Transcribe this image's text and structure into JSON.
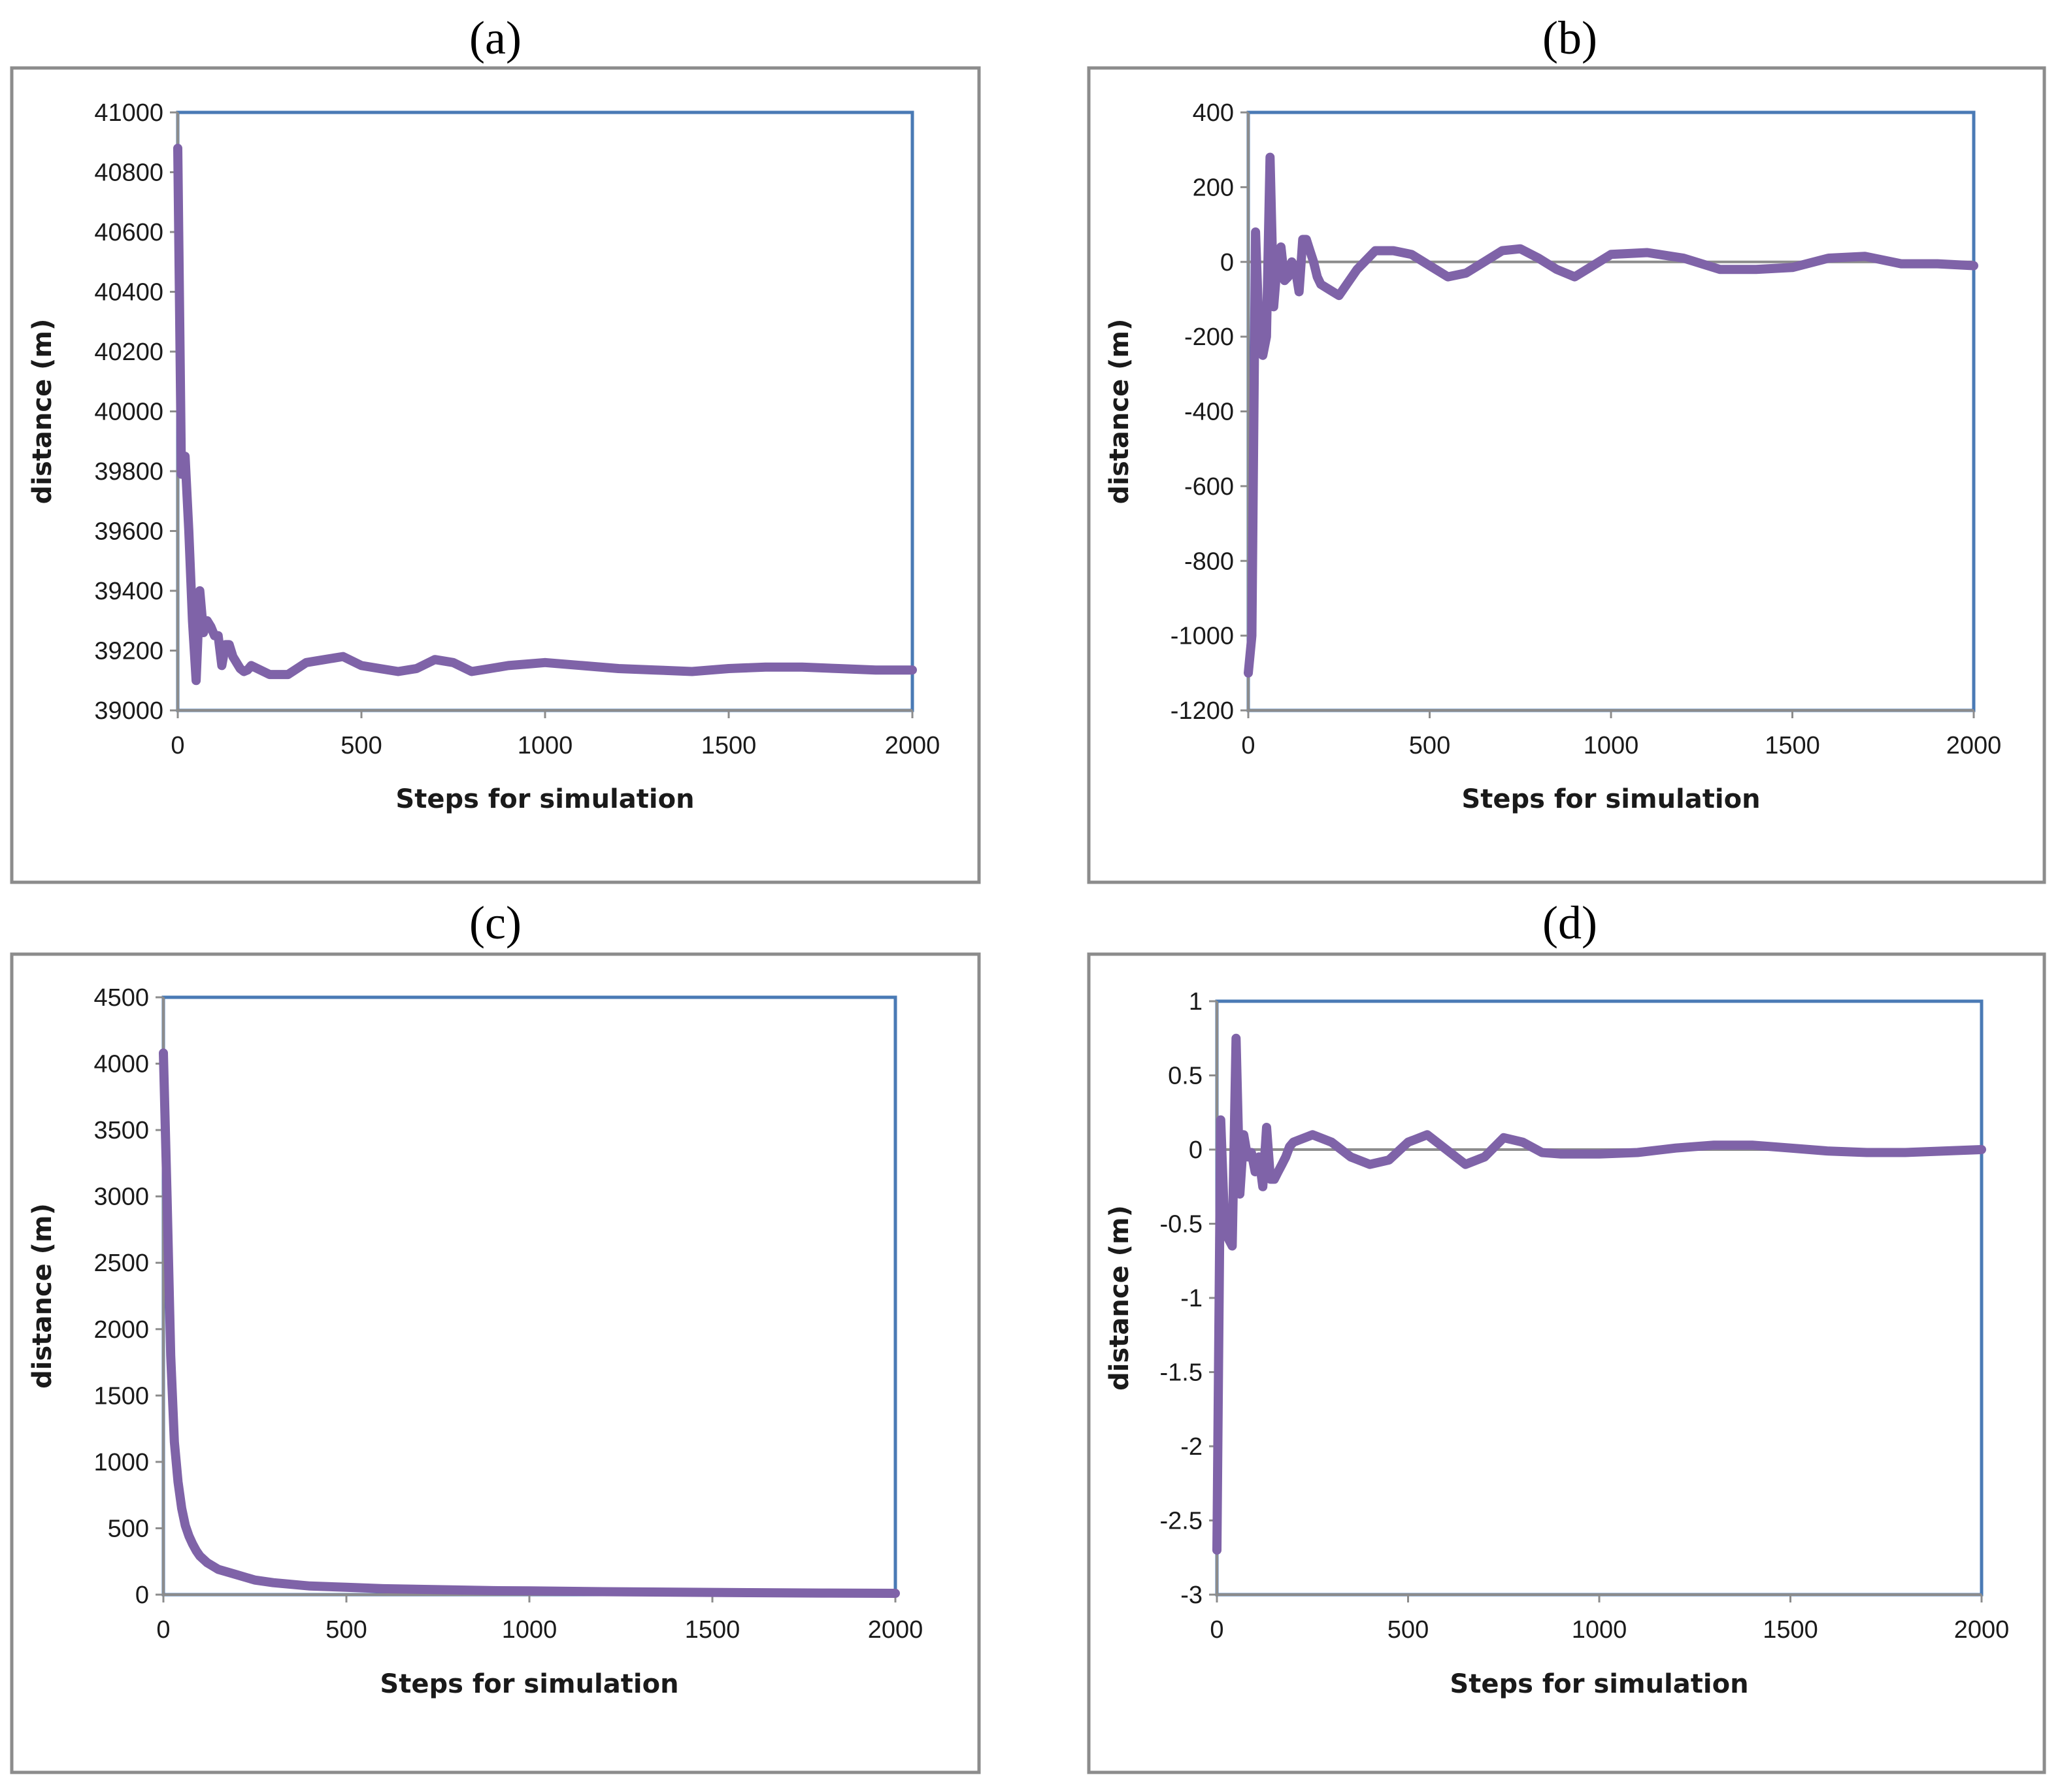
{
  "figure": {
    "panel_count": 4
  },
  "colors": {
    "series": "#7f63a8",
    "plot_border": "#4a7ab5",
    "outer_border": "#8c8c8c",
    "zero_line": "#8c8c8c",
    "text": "#1a1a1a"
  },
  "chart_data": [
    {
      "panel": "a",
      "label": "(a)",
      "type": "line",
      "title": "",
      "xlabel": "Steps for simulation",
      "ylabel": "distance  (m)",
      "xlim": [
        0,
        2000
      ],
      "ylim": [
        39000,
        41000
      ],
      "xticks": [
        0,
        500,
        1000,
        1500,
        2000
      ],
      "yticks": [
        39000,
        39200,
        39400,
        39600,
        39800,
        40000,
        40200,
        40400,
        40600,
        40800,
        41000
      ],
      "zero_line": false,
      "series": [
        {
          "name": "distance",
          "x": [
            0,
            10,
            20,
            30,
            40,
            50,
            60,
            70,
            80,
            90,
            100,
            110,
            120,
            130,
            140,
            150,
            160,
            170,
            180,
            190,
            200,
            250,
            300,
            350,
            400,
            450,
            500,
            550,
            600,
            650,
            700,
            750,
            800,
            850,
            900,
            950,
            1000,
            1100,
            1200,
            1300,
            1400,
            1500,
            1600,
            1700,
            1800,
            1900,
            2000
          ],
          "y": [
            40880,
            39790,
            39850,
            39600,
            39300,
            39100,
            39400,
            39260,
            39300,
            39280,
            39250,
            39250,
            39150,
            39220,
            39220,
            39180,
            39160,
            39140,
            39130,
            39135,
            39150,
            39120,
            39120,
            39160,
            39170,
            39180,
            39150,
            39140,
            39130,
            39140,
            39170,
            39160,
            39130,
            39140,
            39150,
            39155,
            39160,
            39150,
            39140,
            39135,
            39130,
            39140,
            39145,
            39145,
            39140,
            39135,
            39135
          ]
        }
      ]
    },
    {
      "panel": "b",
      "label": "(b)",
      "type": "line",
      "title": "",
      "xlabel": "Steps for simulation",
      "ylabel": "distance  (m)",
      "xlim": [
        0,
        2000
      ],
      "ylim": [
        -1200,
        400
      ],
      "xticks": [
        0,
        500,
        1000,
        1500,
        2000
      ],
      "yticks": [
        -1200,
        -1000,
        -800,
        -600,
        -400,
        -200,
        0,
        200,
        400
      ],
      "zero_line": true,
      "series": [
        {
          "name": "distance",
          "x": [
            0,
            10,
            20,
            30,
            40,
            50,
            60,
            70,
            80,
            90,
            100,
            110,
            120,
            130,
            140,
            150,
            160,
            170,
            180,
            190,
            200,
            250,
            300,
            350,
            400,
            450,
            500,
            550,
            600,
            650,
            700,
            750,
            800,
            850,
            900,
            950,
            1000,
            1100,
            1200,
            1300,
            1400,
            1500,
            1600,
            1700,
            1800,
            1900,
            2000
          ],
          "y": [
            -1100,
            -1000,
            80,
            -200,
            -250,
            -200,
            280,
            -120,
            0,
            40,
            -50,
            -40,
            0,
            -20,
            -80,
            60,
            60,
            30,
            0,
            -40,
            -60,
            -90,
            -20,
            30,
            30,
            20,
            -10,
            -40,
            -30,
            0,
            30,
            35,
            10,
            -20,
            -40,
            -10,
            20,
            25,
            10,
            -20,
            -20,
            -15,
            10,
            15,
            -5,
            -5,
            -10
          ]
        }
      ]
    },
    {
      "panel": "c",
      "label": "(c)",
      "type": "line",
      "title": "",
      "xlabel": "Steps for simulation",
      "ylabel": "distance  (m)",
      "xlim": [
        0,
        2000
      ],
      "ylim": [
        0,
        4500
      ],
      "xticks": [
        0,
        500,
        1000,
        1500,
        2000
      ],
      "yticks": [
        0,
        500,
        1000,
        1500,
        2000,
        2500,
        3000,
        3500,
        4000,
        4500
      ],
      "zero_line": false,
      "series": [
        {
          "name": "distance",
          "x": [
            0,
            10,
            20,
            30,
            40,
            50,
            60,
            70,
            80,
            90,
            100,
            120,
            150,
            200,
            250,
            300,
            400,
            500,
            600,
            700,
            800,
            900,
            1000,
            1200,
            1400,
            1600,
            1800,
            2000
          ],
          "y": [
            4080,
            3000,
            1800,
            1150,
            850,
            650,
            520,
            440,
            380,
            330,
            290,
            240,
            190,
            150,
            110,
            90,
            65,
            55,
            45,
            40,
            35,
            30,
            28,
            22,
            18,
            15,
            12,
            10
          ]
        }
      ]
    },
    {
      "panel": "d",
      "label": "(d)",
      "type": "line",
      "title": "",
      "xlabel": "Steps for simulation",
      "ylabel": "distance  (m)",
      "xlim": [
        0,
        2000
      ],
      "ylim": [
        -3,
        1
      ],
      "xticks": [
        0,
        500,
        1000,
        1500,
        2000
      ],
      "yticks": [
        -3,
        -2.5,
        -2,
        -1.5,
        -1,
        -0.5,
        0,
        0.5,
        1
      ],
      "zero_line": true,
      "series": [
        {
          "name": "distance",
          "x": [
            0,
            10,
            20,
            30,
            40,
            50,
            60,
            70,
            80,
            90,
            100,
            110,
            120,
            130,
            140,
            150,
            160,
            170,
            180,
            190,
            200,
            250,
            300,
            350,
            400,
            450,
            500,
            550,
            600,
            650,
            700,
            750,
            800,
            850,
            900,
            950,
            1000,
            1100,
            1200,
            1300,
            1400,
            1500,
            1600,
            1700,
            1800,
            1900,
            2000
          ],
          "y": [
            -2.7,
            0.2,
            -0.5,
            -0.6,
            -0.65,
            0.75,
            -0.3,
            0.1,
            -0.05,
            -0.02,
            -0.15,
            -0.05,
            -0.25,
            0.15,
            -0.2,
            -0.2,
            -0.15,
            -0.1,
            -0.05,
            0.02,
            0.05,
            0.1,
            0.05,
            -0.05,
            -0.1,
            -0.07,
            0.05,
            0.1,
            0.0,
            -0.1,
            -0.05,
            0.08,
            0.05,
            -0.02,
            -0.03,
            -0.03,
            -0.03,
            -0.02,
            0.01,
            0.03,
            0.03,
            0.01,
            -0.01,
            -0.02,
            -0.02,
            -0.01,
            0.0
          ]
        }
      ]
    }
  ]
}
